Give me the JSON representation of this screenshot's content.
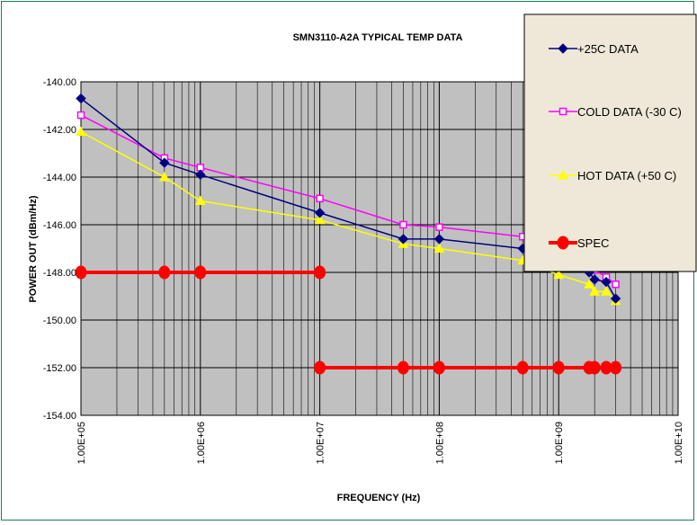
{
  "chart_data": {
    "type": "line",
    "title": "SMN3110-A2A TYPICAL TEMP DATA",
    "xlabel": "FREQUENCY (Hz)",
    "ylabel": "POWER OUT (dBm/Hz)",
    "x_scale": "log",
    "xlim": [
      100000,
      10000000000
    ],
    "ylim": [
      -154,
      -140
    ],
    "x_ticks": [
      "1.00E+05",
      "1.00E+06",
      "1.00E+07",
      "1.00E+08",
      "1.00E+09",
      "1.00E+10"
    ],
    "y_ticks": [
      "-140.00",
      "-142.00",
      "-144.00",
      "-146.00",
      "-148.00",
      "-150.00",
      "-152.00",
      "-154.00"
    ],
    "grid": true,
    "plot_background": "#c0c0c0",
    "legend_position": "top-right",
    "series": [
      {
        "name": "+25C  DATA",
        "color": "#000080",
        "marker": "diamond",
        "points": [
          [
            100000,
            -140.7
          ],
          [
            500000,
            -143.4
          ],
          [
            1000000,
            -143.9
          ],
          [
            10000000,
            -145.5
          ],
          [
            50000000,
            -146.6
          ],
          [
            100000000,
            -146.6
          ],
          [
            500000000,
            -147.0
          ],
          [
            1000000000,
            -147.1
          ],
          [
            1800000000,
            -148.0
          ],
          [
            2000000000,
            -148.3
          ],
          [
            2500000000,
            -148.4
          ],
          [
            3000000000,
            -149.1
          ]
        ]
      },
      {
        "name": "COLD DATA (-30 C)",
        "color": "#ff00ff",
        "marker": "square",
        "points": [
          [
            100000,
            -141.4
          ],
          [
            500000,
            -143.2
          ],
          [
            1000000,
            -143.6
          ],
          [
            10000000,
            -144.9
          ],
          [
            50000000,
            -146.0
          ],
          [
            100000000,
            -146.1
          ],
          [
            500000000,
            -146.5
          ],
          [
            1000000000,
            -146.7
          ],
          [
            1800000000,
            -147.6
          ],
          [
            2000000000,
            -147.9
          ],
          [
            2500000000,
            -148.2
          ],
          [
            3000000000,
            -148.5
          ]
        ]
      },
      {
        "name": "HOT DATA (+50 C)",
        "color": "#ffff00",
        "marker": "triangle",
        "points": [
          [
            100000,
            -142.1
          ],
          [
            500000,
            -144.0
          ],
          [
            1000000,
            -145.0
          ],
          [
            10000000,
            -145.8
          ],
          [
            50000000,
            -146.8
          ],
          [
            100000000,
            -147.0
          ],
          [
            500000000,
            -147.5
          ],
          [
            1000000000,
            -148.1
          ],
          [
            1800000000,
            -148.5
          ],
          [
            2000000000,
            -148.8
          ],
          [
            2500000000,
            -148.8
          ],
          [
            3000000000,
            -149.2
          ]
        ]
      },
      {
        "name": "SPEC",
        "color": "#ff0000",
        "marker": "circle",
        "segments": [
          [
            [
              100000,
              -148
            ],
            [
              500000,
              -148
            ],
            [
              1000000,
              -148
            ],
            [
              10000000,
              -148
            ]
          ],
          [
            [
              10000000,
              -152
            ],
            [
              50000000,
              -152
            ],
            [
              100000000,
              -152
            ],
            [
              500000000,
              -152
            ],
            [
              1000000000,
              -152
            ],
            [
              1800000000,
              -152
            ],
            [
              2000000000,
              -152
            ],
            [
              2500000000,
              -152
            ],
            [
              3000000000,
              -152
            ]
          ]
        ]
      }
    ]
  }
}
